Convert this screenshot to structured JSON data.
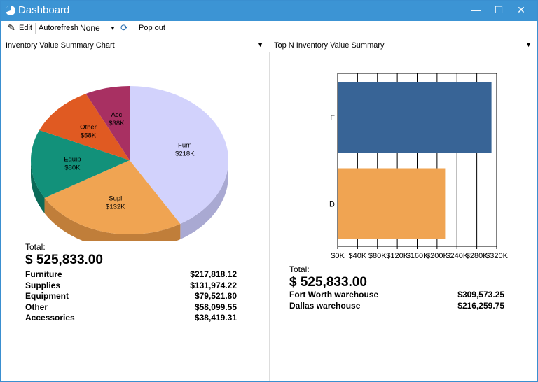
{
  "window": {
    "title": "Dashboard",
    "minimize": "—",
    "maximize": "☐",
    "close": "✕"
  },
  "toolbar": {
    "edit": "Edit",
    "autorefresh": "Autorefresh",
    "refresh_value": "None",
    "pop_out": "Pop out"
  },
  "left_panel": {
    "title": "Inventory Value Summary Chart",
    "total_label": "Total:",
    "total_value": "$ 525,833.00",
    "rows": [
      {
        "label": "Furniture",
        "value": "$217,818.12"
      },
      {
        "label": "Supplies",
        "value": "$131,974.22"
      },
      {
        "label": "Equipment",
        "value": "$79,521.80"
      },
      {
        "label": "Other",
        "value": "$58,099.55"
      },
      {
        "label": "Accessories",
        "value": "$38,419.31"
      }
    ]
  },
  "right_panel": {
    "title": "Top N Inventory Value Summary",
    "total_label": "Total:",
    "total_value": "$ 525,833.00",
    "rows": [
      {
        "label": "Fort Worth warehouse",
        "value": "$309,573.25"
      },
      {
        "label": "Dallas warehouse",
        "value": "$216,259.75"
      }
    ]
  },
  "chart_data": [
    {
      "type": "pie",
      "title": "Inventory Value Summary Chart",
      "slices": [
        {
          "label": "Furn",
          "value_label": "$218K",
          "value": 217818.12,
          "color": "#d2d2fc",
          "side": "#a9a9d2"
        },
        {
          "label": "Supl",
          "value_label": "$132K",
          "value": 131974.22,
          "color": "#f0a452",
          "side": "#c07e3a"
        },
        {
          "label": "Equip",
          "value_label": "$80K",
          "value": 79521.8,
          "color": "#12917a",
          "side": "#0b6a58"
        },
        {
          "label": "Other",
          "value_label": "$58K",
          "value": 58099.55,
          "color": "#e05a22",
          "side": "#a8401a"
        },
        {
          "label": "Acc",
          "value_label": "$38K",
          "value": 38419.31,
          "color": "#a83062",
          "side": "#7a2046"
        }
      ]
    },
    {
      "type": "bar",
      "orientation": "horizontal",
      "title": "Top N Inventory Value Summary",
      "categories": [
        "F",
        "D"
      ],
      "values": [
        309573.25,
        216259.75
      ],
      "colors": [
        "#386496",
        "#f0a452"
      ],
      "xlim": [
        0,
        320000
      ],
      "xticks": [
        "$0K",
        "$40K",
        "$80K",
        "$120K",
        "$160K",
        "$200K",
        "$240K",
        "$280K",
        "$320K"
      ],
      "grid": true
    }
  ]
}
